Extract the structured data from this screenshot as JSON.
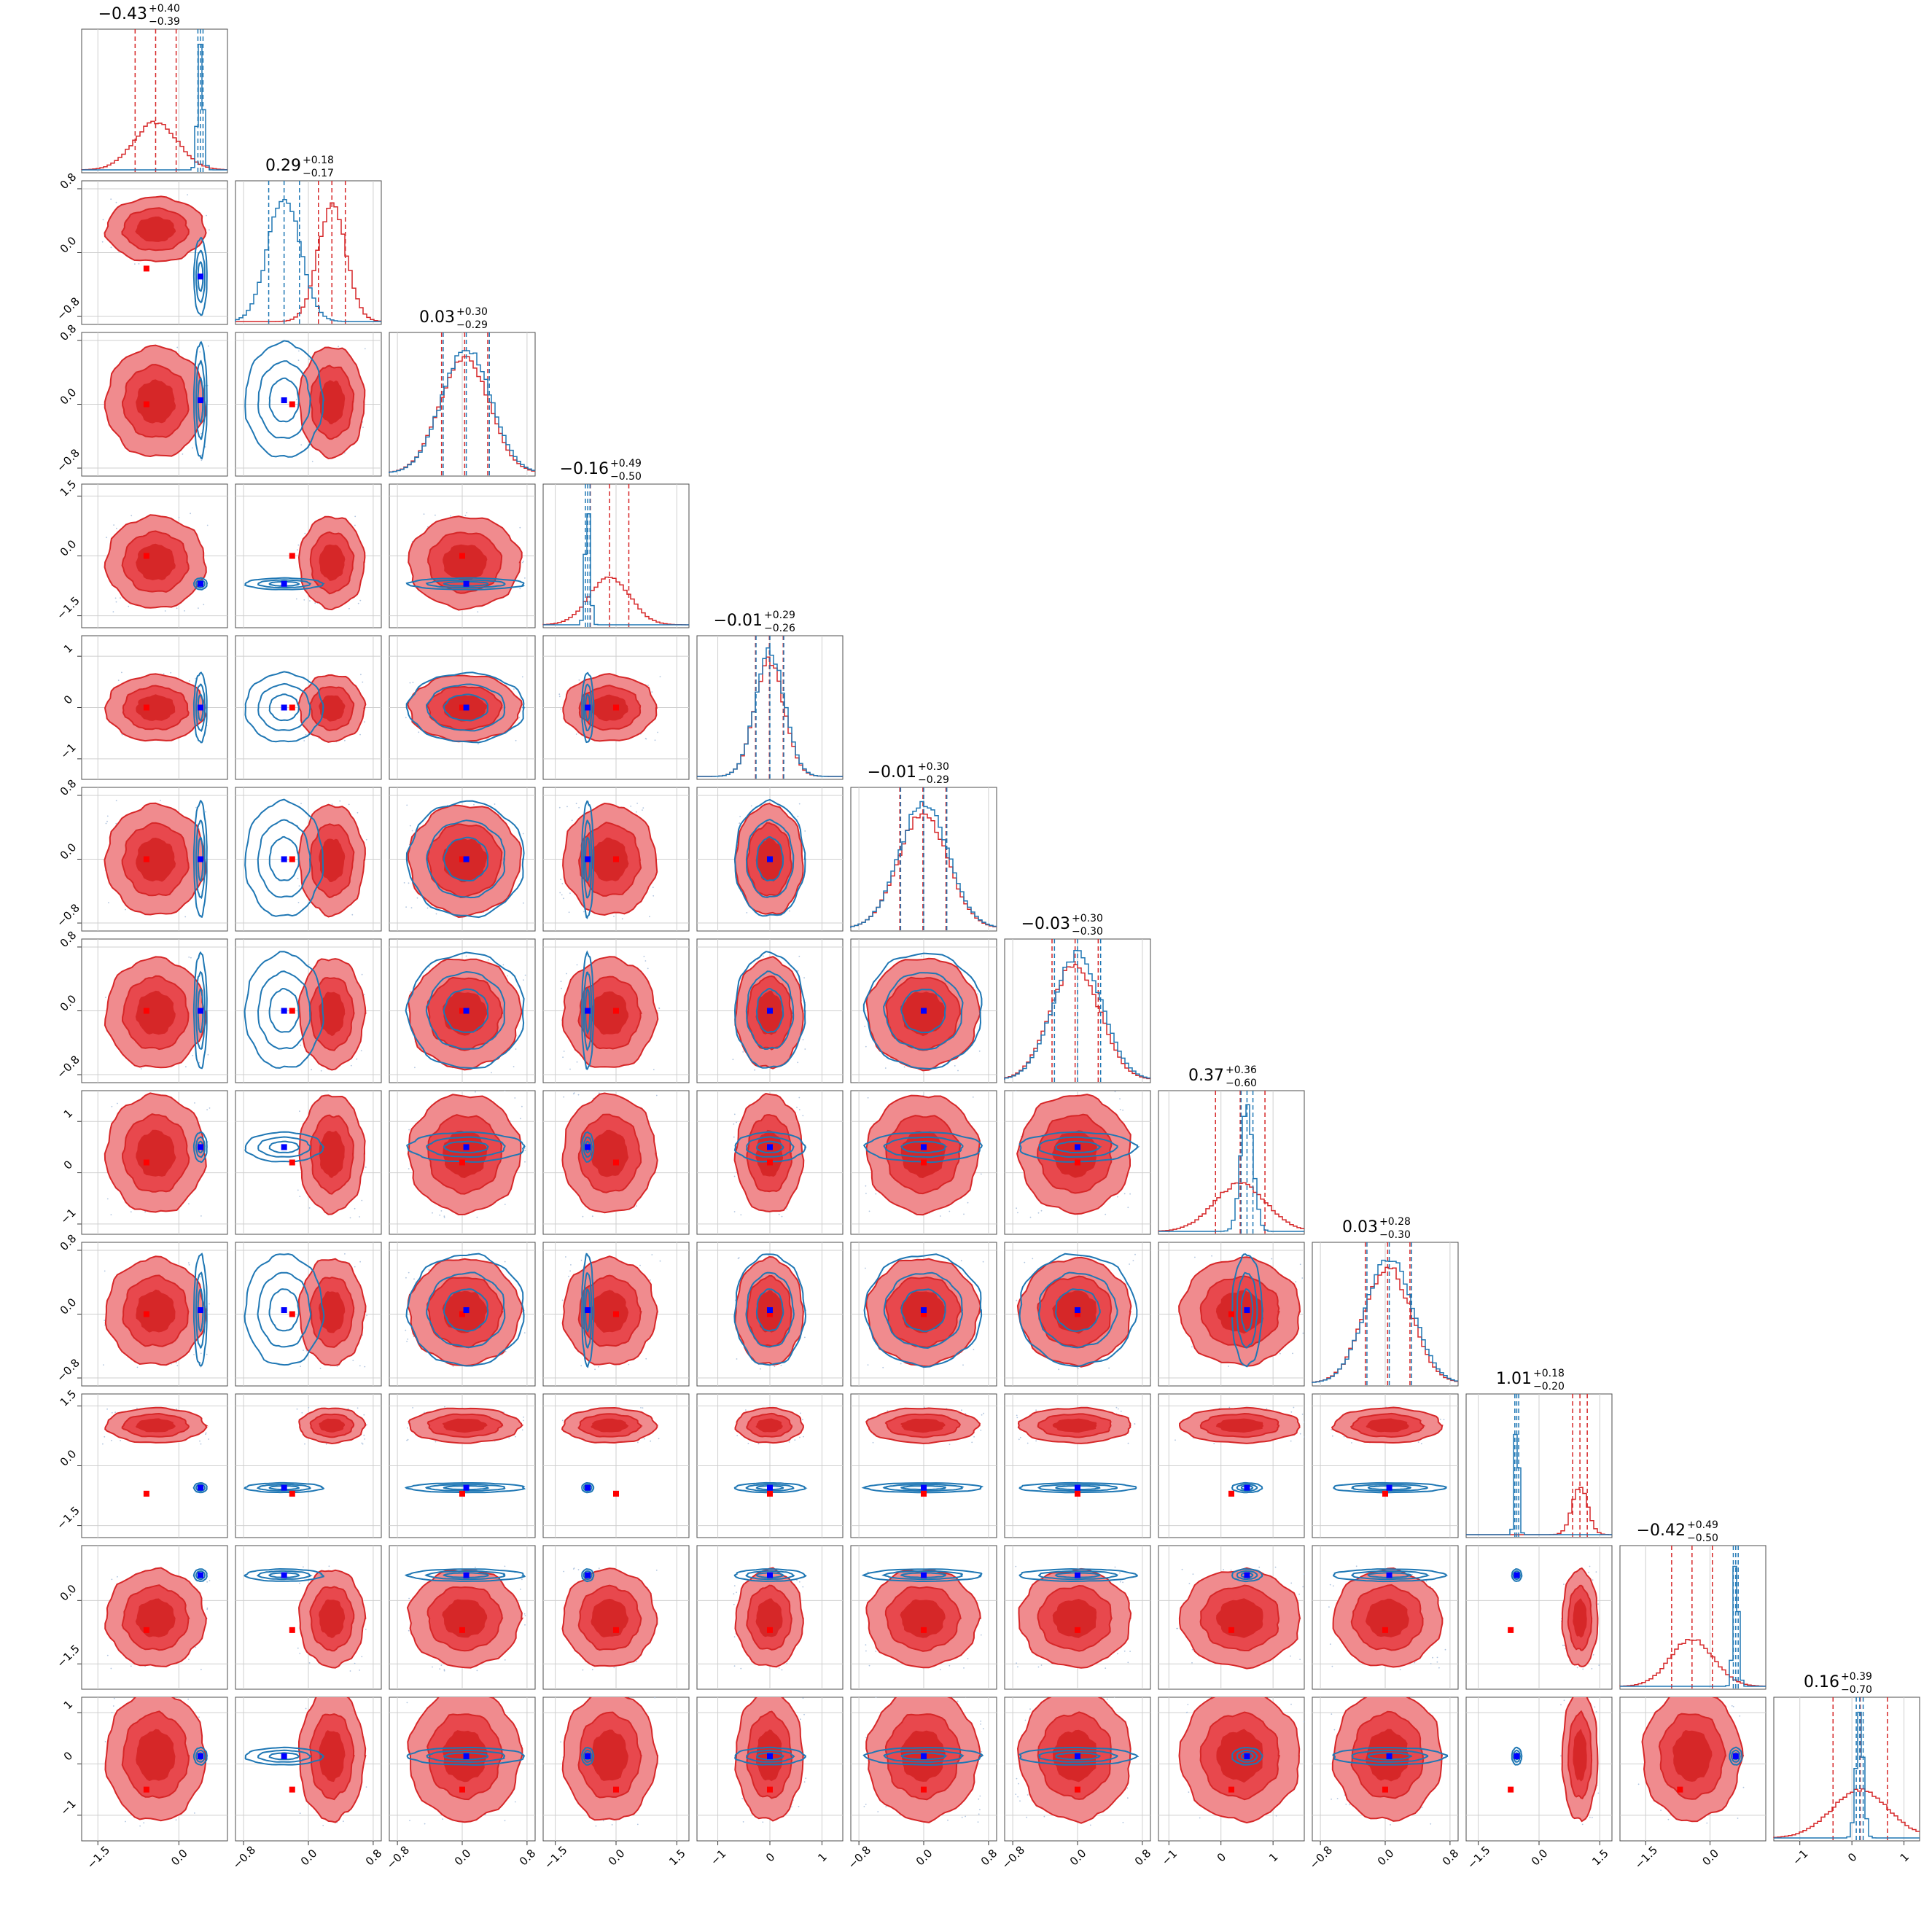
{
  "chart_data": {
    "type": "corner",
    "n_params": 12,
    "series": [
      {
        "name": "",
        "color": "#d62728",
        "fill_color": "#e8484d",
        "fill_light": "#f08b8e",
        "medians": [
          -0.43,
          0.29,
          0.03,
          -0.16,
          -0.01,
          -0.01,
          -0.03,
          0.37,
          0.03,
          1.01,
          -0.42,
          0.16
        ],
        "stds": [
          0.4,
          0.175,
          0.3,
          0.5,
          0.28,
          0.3,
          0.3,
          0.5,
          0.29,
          0.19,
          0.5,
          0.55
        ],
        "truth_markers": [
          -0.6,
          -0.2,
          0.0,
          0.0,
          0.0,
          0.0,
          0.0,
          0.2,
          0.0,
          -0.7,
          -0.7,
          -0.5
        ]
      },
      {
        "name": "",
        "color": "#1f77b4",
        "fill_color": "#1f77b4",
        "medians": [
          0.4,
          -0.3,
          0.05,
          -0.7,
          0.0,
          0.0,
          0.0,
          0.5,
          0.05,
          -0.55,
          0.6,
          0.15
        ],
        "stds": [
          0.05,
          0.2,
          0.3,
          0.06,
          0.28,
          0.3,
          0.3,
          0.12,
          0.29,
          0.05,
          0.06,
          0.07
        ],
        "truth_markers": [
          0.4,
          -0.3,
          0.05,
          -0.7,
          0.0,
          0.0,
          0.0,
          0.5,
          0.05,
          -0.55,
          0.6,
          0.15
        ]
      }
    ],
    "ranges": [
      [
        -1.8,
        0.9
      ],
      [
        -0.9,
        0.9
      ],
      [
        -0.9,
        0.9
      ],
      [
        -1.8,
        1.8
      ],
      [
        -1.4,
        1.4
      ],
      [
        -0.9,
        0.9
      ],
      [
        -0.9,
        0.9
      ],
      [
        -1.2,
        1.6
      ],
      [
        -0.9,
        0.9
      ],
      [
        -1.8,
        1.8
      ],
      [
        -2.1,
        1.3
      ],
      [
        -1.5,
        1.3
      ]
    ],
    "ticks": [
      [
        "−1.5",
        "0.0"
      ],
      [
        "−0.8",
        "0.0",
        "0.8"
      ],
      [
        "−0.8",
        "0.0",
        "0.8"
      ],
      [
        "−1.5",
        "0.0",
        "1.5"
      ],
      [
        "−1",
        "0",
        "1"
      ],
      [
        "−0.8",
        "0.0",
        "0.8"
      ],
      [
        "−0.8",
        "0.0",
        "0.8"
      ],
      [
        "−1",
        "0",
        "1"
      ],
      [
        "−0.8",
        "0.0",
        "0.8"
      ],
      [
        "−1.5",
        "0.0",
        "1.5"
      ],
      [
        "−1.5",
        "0.0"
      ],
      [
        "−1",
        "0",
        "1"
      ]
    ],
    "tick_values": [
      [
        -1.5,
        0.0
      ],
      [
        -0.8,
        0.0,
        0.8
      ],
      [
        -0.8,
        0.0,
        0.8
      ],
      [
        -1.5,
        0.0,
        1.5
      ],
      [
        -1,
        0,
        1
      ],
      [
        -0.8,
        0.0,
        0.8
      ],
      [
        -0.8,
        0.0,
        0.8
      ],
      [
        -1,
        0,
        1
      ],
      [
        -0.8,
        0.0,
        0.8
      ],
      [
        -1.5,
        0.0,
        1.5
      ],
      [
        -1.5,
        0.0
      ],
      [
        -1,
        0,
        1
      ]
    ],
    "titles": [
      {
        "value": "−0.43",
        "plus": "+0.40",
        "minus": "−0.39"
      },
      {
        "value": "0.29",
        "plus": "+0.18",
        "minus": "−0.17"
      },
      {
        "value": "0.03",
        "plus": "+0.30",
        "minus": "−0.29"
      },
      {
        "value": "−0.16",
        "plus": "+0.49",
        "minus": "−0.50"
      },
      {
        "value": "−0.01",
        "plus": "+0.29",
        "minus": "−0.26"
      },
      {
        "value": "−0.01",
        "plus": "+0.30",
        "minus": "−0.29"
      },
      {
        "value": "−0.03",
        "plus": "+0.30",
        "minus": "−0.30"
      },
      {
        "value": "0.37",
        "plus": "+0.36",
        "minus": "−0.60"
      },
      {
        "value": "0.03",
        "plus": "+0.28",
        "minus": "−0.30"
      },
      {
        "value": "1.01",
        "plus": "+0.18",
        "minus": "−0.20"
      },
      {
        "value": "−0.42",
        "plus": "+0.49",
        "minus": "−0.50"
      },
      {
        "value": "0.16",
        "plus": "+0.39",
        "minus": "−0.70"
      }
    ],
    "grid": true,
    "legend": "none"
  }
}
